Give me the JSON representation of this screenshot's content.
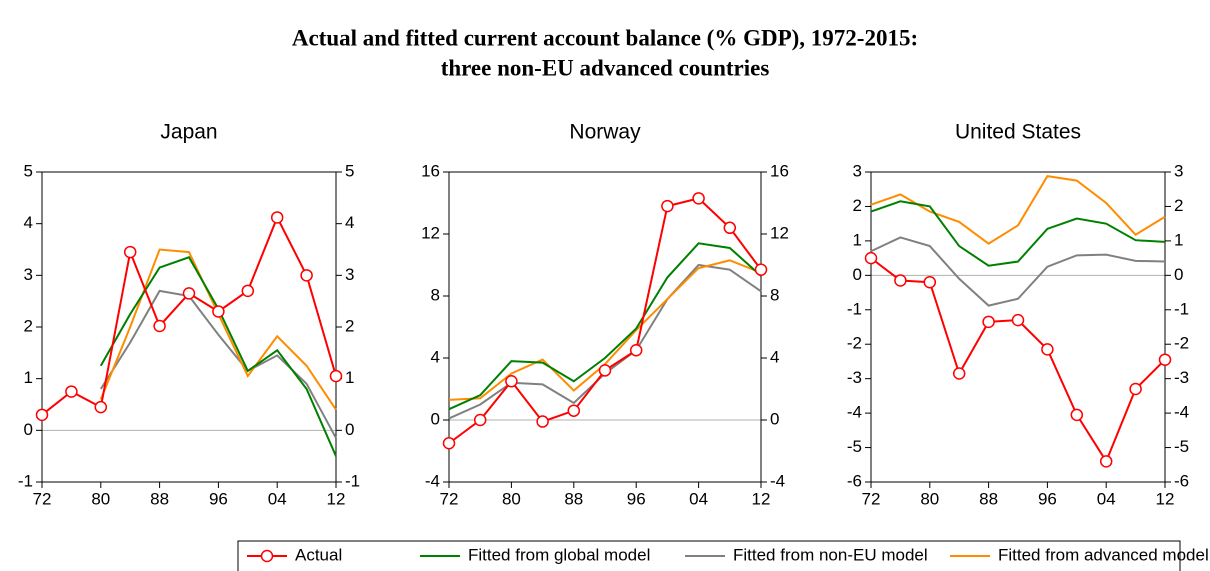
{
  "title": [
    "Actual and fitted current account balance (% GDP), 1972-2015:",
    "three non-EU advanced countries"
  ],
  "chart_data": [
    {
      "type": "line",
      "title": "Japan",
      "x": [
        1972,
        1976,
        1980,
        1984,
        1988,
        1992,
        1996,
        2000,
        2004,
        2008,
        2012
      ],
      "xlim": [
        1972,
        2012
      ],
      "xticks": [
        {
          "value": 1972,
          "label": "72"
        },
        {
          "value": 1980,
          "label": "80"
        },
        {
          "value": 1988,
          "label": "88"
        },
        {
          "value": 1996,
          "label": "96"
        },
        {
          "value": 2004,
          "label": "04"
        },
        {
          "value": 2012,
          "label": "12"
        }
      ],
      "ylim": [
        -1,
        5
      ],
      "yticks": [
        -1,
        0,
        1,
        2,
        3,
        4,
        5
      ],
      "zero_line": true,
      "series": [
        {
          "name": "Actual",
          "color": "#ff0000",
          "marker": "circle",
          "values": [
            0.3,
            0.75,
            0.45,
            3.45,
            2.02,
            2.65,
            2.3,
            2.7,
            4.12,
            3.0,
            1.05
          ]
        },
        {
          "name": "Fitted from global model",
          "color": "#008000",
          "values": [
            null,
            null,
            1.25,
            2.25,
            3.15,
            3.35,
            2.35,
            1.15,
            1.55,
            0.8,
            -0.5
          ]
        },
        {
          "name": "Fitted from non-EU model",
          "color": "#808080",
          "values": [
            null,
            null,
            0.8,
            1.7,
            2.7,
            2.6,
            1.85,
            1.15,
            1.45,
            0.9,
            -0.15
          ]
        },
        {
          "name": "Fitted from advanced model",
          "color": "#ff8c00",
          "values": [
            null,
            null,
            0.6,
            2.0,
            3.5,
            3.45,
            2.25,
            1.05,
            1.82,
            1.25,
            0.4
          ]
        }
      ]
    },
    {
      "type": "line",
      "title": "Norway",
      "x": [
        1972,
        1976,
        1980,
        1984,
        1988,
        1992,
        1996,
        2000,
        2004,
        2008,
        2012
      ],
      "xlim": [
        1972,
        2012
      ],
      "xticks": [
        {
          "value": 1972,
          "label": "72"
        },
        {
          "value": 1980,
          "label": "80"
        },
        {
          "value": 1988,
          "label": "88"
        },
        {
          "value": 1996,
          "label": "96"
        },
        {
          "value": 2004,
          "label": "04"
        },
        {
          "value": 2012,
          "label": "12"
        }
      ],
      "ylim": [
        -4,
        16
      ],
      "yticks": [
        -4,
        0,
        4,
        8,
        12,
        16
      ],
      "zero_line": true,
      "series": [
        {
          "name": "Actual",
          "color": "#ff0000",
          "marker": "circle",
          "values": [
            -1.5,
            0,
            2.5,
            -0.1,
            0.6,
            3.2,
            4.5,
            13.8,
            14.3,
            12.4,
            9.7
          ]
        },
        {
          "name": "Fitted from global model",
          "color": "#008000",
          "values": [
            0.7,
            1.6,
            3.8,
            3.7,
            2.5,
            4.0,
            5.9,
            9.2,
            11.4,
            11.1,
            9.3
          ]
        },
        {
          "name": "Fitted from non-EU model",
          "color": "#808080",
          "values": [
            0.1,
            1.0,
            2.4,
            2.3,
            1.1,
            3.0,
            4.5,
            7.8,
            10.0,
            9.7,
            8.3
          ]
        },
        {
          "name": "Fitted from advanced model",
          "color": "#ff8c00",
          "values": [
            1.3,
            1.4,
            3.0,
            3.9,
            1.9,
            3.6,
            5.8,
            7.8,
            9.8,
            10.3,
            9.5
          ]
        }
      ]
    },
    {
      "type": "line",
      "title": "United States",
      "x": [
        1972,
        1976,
        1980,
        1984,
        1988,
        1992,
        1996,
        2000,
        2004,
        2008,
        2012
      ],
      "xlim": [
        1972,
        2012
      ],
      "xticks": [
        {
          "value": 1972,
          "label": "72"
        },
        {
          "value": 1980,
          "label": "80"
        },
        {
          "value": 1988,
          "label": "88"
        },
        {
          "value": 1996,
          "label": "96"
        },
        {
          "value": 2004,
          "label": "04"
        },
        {
          "value": 2012,
          "label": "12"
        }
      ],
      "ylim": [
        -6,
        3
      ],
      "yticks": [
        -6,
        -5,
        -4,
        -3,
        -2,
        -1,
        0,
        1,
        2,
        3
      ],
      "zero_line": true,
      "series": [
        {
          "name": "Actual",
          "color": "#ff0000",
          "marker": "circle",
          "values": [
            0.5,
            -0.15,
            -0.2,
            -2.85,
            -1.35,
            -1.3,
            -2.15,
            -4.05,
            -5.4,
            -3.3,
            -2.45
          ]
        },
        {
          "name": "Fitted from global model",
          "color": "#008000",
          "values": [
            1.85,
            2.15,
            2.0,
            0.85,
            0.28,
            0.4,
            1.35,
            1.65,
            1.5,
            1.02,
            0.97
          ]
        },
        {
          "name": "Fitted from non-EU model",
          "color": "#808080",
          "values": [
            0.7,
            1.1,
            0.85,
            -0.1,
            -0.88,
            -0.68,
            0.25,
            0.58,
            0.6,
            0.42,
            0.4
          ]
        },
        {
          "name": "Fitted from advanced model",
          "color": "#ff8c00",
          "values": [
            2.05,
            2.35,
            1.85,
            1.55,
            0.92,
            1.45,
            2.88,
            2.75,
            2.1,
            1.18,
            1.7
          ]
        }
      ]
    }
  ]
}
